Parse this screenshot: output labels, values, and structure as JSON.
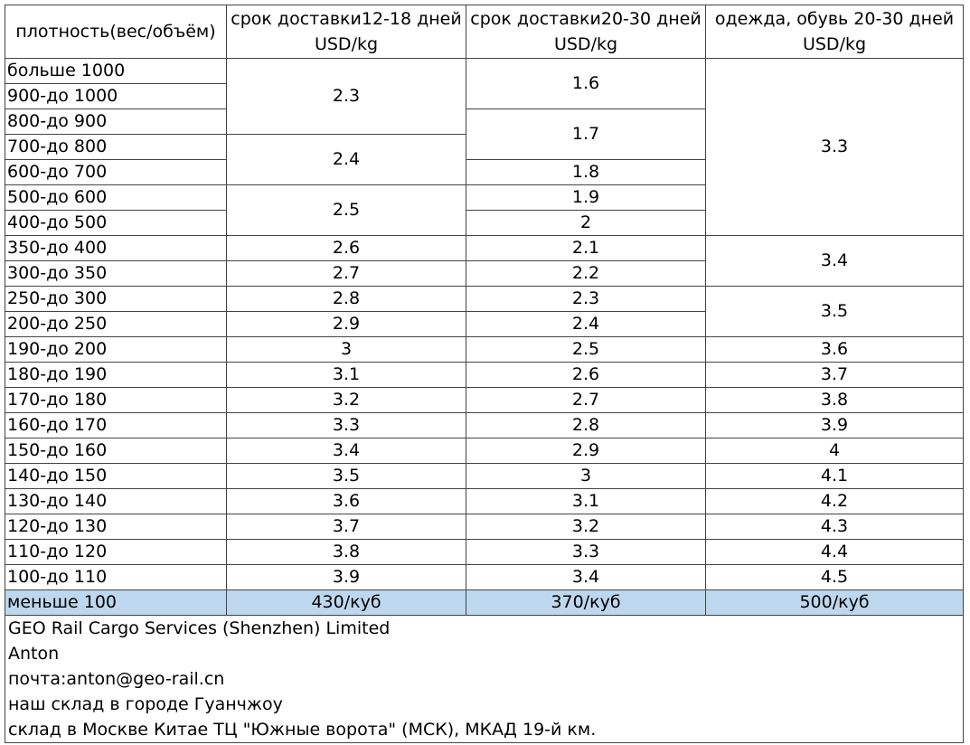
{
  "table": {
    "header": [
      [
        "плотность(вес/объём)"
      ],
      [
        "срок доставки12-18 дней",
        "USD/kg"
      ],
      [
        "срок доставки20-30 дней",
        "USD/kg"
      ],
      [
        "одежда, обувь 20-30 дней",
        "USD/kg"
      ]
    ],
    "rows": [
      "больше 1000",
      "900-до 1000",
      "800-до 900",
      "700-до 800",
      "600-до 700",
      "500-до 600",
      "400-до 500",
      "350-до 400",
      "300-до 350",
      "250-до 300",
      "200-до 250",
      "190-до 200",
      "180-до 190",
      "170-до 180",
      "160-до 170",
      "150-до 160",
      "140-до 150",
      "130-до 140",
      "120-до 130",
      "110-до 120",
      "100-до 110"
    ],
    "columns": [
      [
        2.3,
        2.4,
        2.5,
        2.6,
        2.7,
        2.8,
        2.9,
        3,
        3.1,
        3.2,
        3.3,
        3.4,
        3.5,
        3.6,
        3.7,
        3.8,
        3.9
      ],
      [
        1.6,
        1.7,
        1.8,
        1.9,
        2,
        2.1,
        2.2,
        2.3,
        2.4,
        2.5,
        2.6,
        2.7,
        2.8,
        2.9,
        3,
        3.1,
        3.2,
        3.3,
        3.4
      ],
      [
        3.3,
        3.4,
        3.5,
        3.6,
        3.7,
        3.8,
        3.9,
        4,
        4.1,
        4.2,
        4.3,
        4.4,
        4.5
      ]
    ],
    "last_row": [
      "меньше 100",
      "430/куб",
      "370/куб",
      "500/куб"
    ]
  },
  "footer": {
    "lines": [
      "GEO Rail Cargo Services (Shenzhen) Limited",
      "Anton",
      "почта:anton@geo-rail.cn",
      "наш склад в городе Гуанчжоу",
      "склад в Москве Китае ТЦ \"Южные ворота\" (МСК), МКАД 19-й км."
    ]
  }
}
